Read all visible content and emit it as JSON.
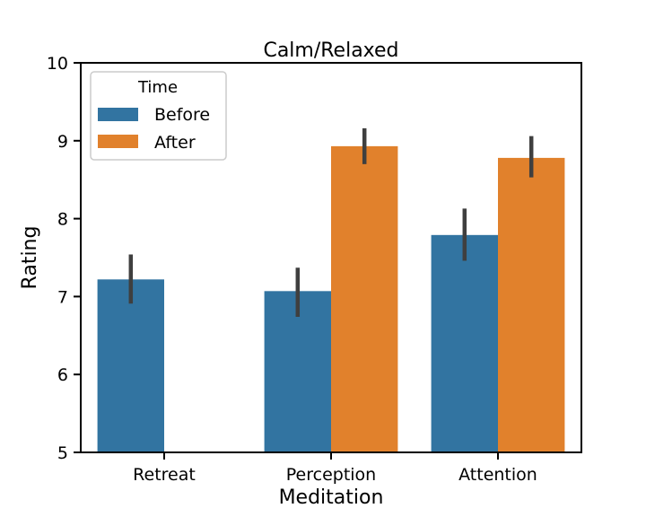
{
  "chart_data": {
    "type": "bar",
    "title": "Calm/Relaxed",
    "xlabel": "Meditation",
    "ylabel": "Rating",
    "ylim": [
      5,
      10
    ],
    "yticks": [
      5,
      6,
      7,
      8,
      9,
      10
    ],
    "grid": false,
    "categories": [
      "Retreat",
      "Perception",
      "Attention"
    ],
    "legend": {
      "title": "Time",
      "placement": "top-left"
    },
    "series": [
      {
        "name": "Before",
        "color": "#3274a1",
        "values": [
          7.22,
          7.07,
          7.79
        ],
        "ci_low": [
          6.91,
          6.74,
          7.46
        ],
        "ci_high": [
          7.54,
          7.37,
          8.13
        ]
      },
      {
        "name": "After",
        "color": "#e1812c",
        "values": [
          null,
          8.93,
          8.78
        ],
        "ci_low": [
          null,
          8.7,
          8.53
        ],
        "ci_high": [
          null,
          9.16,
          9.06
        ]
      }
    ],
    "errorbar_color": "#3f3f3f"
  }
}
